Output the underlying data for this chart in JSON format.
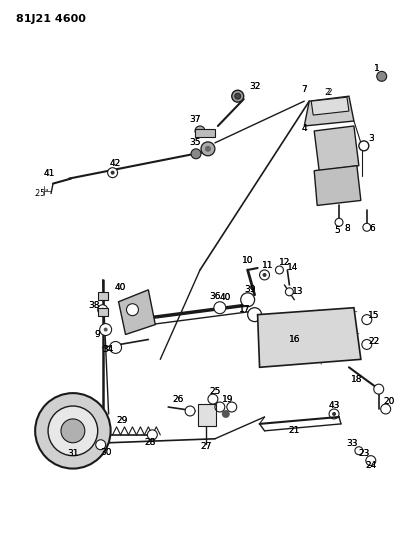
{
  "title": "81J21 4600",
  "bg_color": "#ffffff",
  "fig_width": 3.98,
  "fig_height": 5.33,
  "dpi": 100,
  "annotation_fontsize": 6.5
}
